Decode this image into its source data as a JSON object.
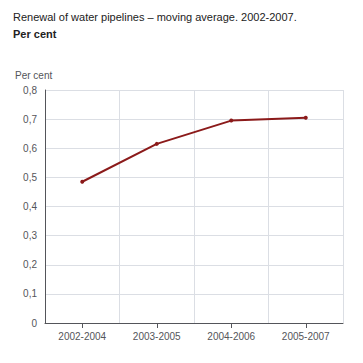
{
  "chart_data": {
    "type": "line",
    "title": "Renewal of water pipelines – moving average. 2002-2007.",
    "subtitle": "Per cent",
    "ylabel": "Per cent",
    "categories": [
      "2002-2004",
      "2003-2005",
      "2004-2006",
      "2005-2007"
    ],
    "values": [
      0.485,
      0.615,
      0.695,
      0.705
    ],
    "color": "#8B1A1A",
    "ylim": [
      0,
      0.8
    ],
    "yticks": [
      0,
      {
        "value": 0.1,
        "label": "0,1"
      },
      {
        "value": 0.2,
        "label": "0,2"
      },
      {
        "value": 0.3,
        "label": "0,3"
      },
      {
        "value": 0.4,
        "label": "0,4"
      },
      {
        "value": 0.5,
        "label": "0,5"
      },
      {
        "value": 0.6,
        "label": "0,6"
      },
      {
        "value": 0.7,
        "label": "0,7"
      },
      {
        "value": 0.8,
        "label": "0,8"
      }
    ],
    "grid": true
  }
}
